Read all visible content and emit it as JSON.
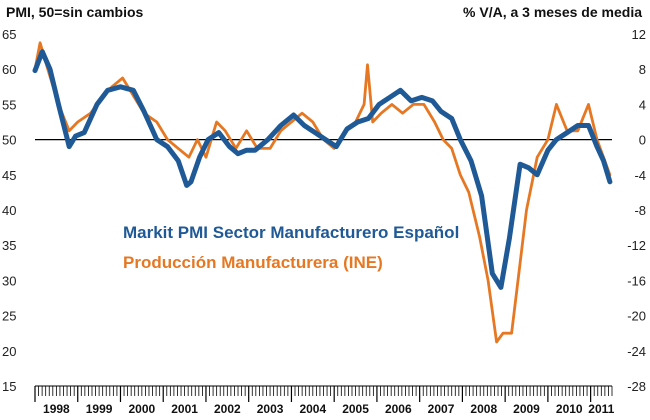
{
  "chart_data": {
    "type": "line",
    "title_left": "PMI, 50=sin cambios",
    "title_right": "% V/A, a 3 meses de media",
    "y_left": {
      "ticks": [
        65,
        60,
        55,
        50,
        45,
        40,
        35,
        30,
        25,
        20,
        15
      ],
      "min": 15,
      "max": 65
    },
    "y_right": {
      "ticks": [
        12,
        8,
        4,
        0,
        -4,
        -8,
        -12,
        -16,
        -20,
        -24,
        -28
      ],
      "min": -28,
      "max": 12
    },
    "x_years": [
      "1998",
      "1999",
      "2000",
      "2001",
      "2002",
      "2003",
      "2004",
      "2005",
      "2006",
      "2007",
      "2008",
      "2009",
      "2010",
      "2011"
    ],
    "x_start": 1998.0,
    "x_end": 2011.5,
    "series": [
      {
        "name": "Markit PMI Sector Manufacturero Español",
        "axis": "left",
        "color": "#1f5a96",
        "x": [
          1998.0,
          1998.17,
          1998.35,
          1998.55,
          1998.8,
          1998.95,
          1999.15,
          1999.45,
          1999.7,
          2000.0,
          2000.3,
          2000.55,
          2000.85,
          2001.1,
          2001.35,
          2001.55,
          2001.65,
          2001.85,
          2002.05,
          2002.3,
          2002.55,
          2002.75,
          2002.95,
          2003.15,
          2003.45,
          2003.75,
          2004.05,
          2004.3,
          2004.55,
          2004.8,
          2005.05,
          2005.3,
          2005.55,
          2005.8,
          2006.05,
          2006.3,
          2006.55,
          2006.8,
          2007.05,
          2007.3,
          2007.5,
          2007.75,
          2007.95,
          2008.2,
          2008.45,
          2008.7,
          2008.9,
          2009.1,
          2009.35,
          2009.55,
          2009.75,
          2010.0,
          2010.2,
          2010.45,
          2010.7,
          2010.95,
          2011.15,
          2011.3,
          2011.45
        ],
        "y": [
          59.8,
          62.5,
          60,
          55,
          49,
          50.5,
          51,
          55,
          57,
          57.5,
          57,
          54,
          50,
          49,
          47,
          43.5,
          44,
          47.5,
          50,
          51,
          49,
          48,
          48.5,
          48.5,
          50,
          52,
          53.5,
          52,
          51,
          50,
          49,
          51.5,
          52.5,
          53,
          55,
          56,
          57,
          55.5,
          56,
          55.5,
          54,
          53,
          50,
          47,
          42,
          31,
          29,
          36,
          46.5,
          46,
          45,
          48.5,
          50,
          51,
          52,
          52,
          49,
          47,
          44
        ]
      },
      {
        "name": "Producción Manufacturera (INE)",
        "axis": "right",
        "color": "#e67824",
        "x": [
          1998.0,
          1998.12,
          1998.3,
          1998.55,
          1998.8,
          1999.0,
          1999.3,
          1999.6,
          1999.8,
          2000.05,
          2000.3,
          2000.55,
          2000.85,
          2001.1,
          2001.35,
          2001.6,
          2001.8,
          2002.0,
          2002.25,
          2002.45,
          2002.7,
          2002.95,
          2003.2,
          2003.5,
          2003.75,
          2004.0,
          2004.25,
          2004.5,
          2004.75,
          2005.0,
          2005.25,
          2005.5,
          2005.7,
          2005.78,
          2005.9,
          2006.1,
          2006.35,
          2006.6,
          2006.85,
          2007.1,
          2007.35,
          2007.55,
          2007.75,
          2007.95,
          2008.15,
          2008.4,
          2008.6,
          2008.8,
          2008.95,
          2009.15,
          2009.3,
          2009.5,
          2009.75,
          2010.0,
          2010.2,
          2010.45,
          2010.7,
          2010.95,
          2011.15,
          2011.3,
          2011.45
        ],
        "y": [
          8,
          11,
          8,
          4,
          1,
          2,
          3,
          5,
          6,
          7,
          5,
          3,
          2,
          0,
          -1,
          -2,
          0,
          -2,
          2,
          1,
          -1,
          1,
          -1,
          -1,
          1,
          2,
          3,
          2,
          0,
          -1,
          1,
          2,
          4,
          8.5,
          2,
          3,
          4,
          3,
          4,
          4,
          2,
          0,
          -1,
          -4,
          -6,
          -11,
          -16,
          -23,
          -22,
          -22,
          -16,
          -8,
          -2,
          0,
          4,
          1,
          1,
          4,
          0,
          -2,
          -4
        ]
      }
    ],
    "legend": [
      {
        "label": "Markit PMI Sector Manufacturero Español",
        "color": "#1f5a96"
      },
      {
        "label": "Producción Manufacturera (INE)",
        "color": "#e67824"
      }
    ],
    "legend_position": "center-left",
    "reference_line": {
      "axis": "left",
      "value": 50,
      "color": "#000000"
    },
    "grid": false
  }
}
